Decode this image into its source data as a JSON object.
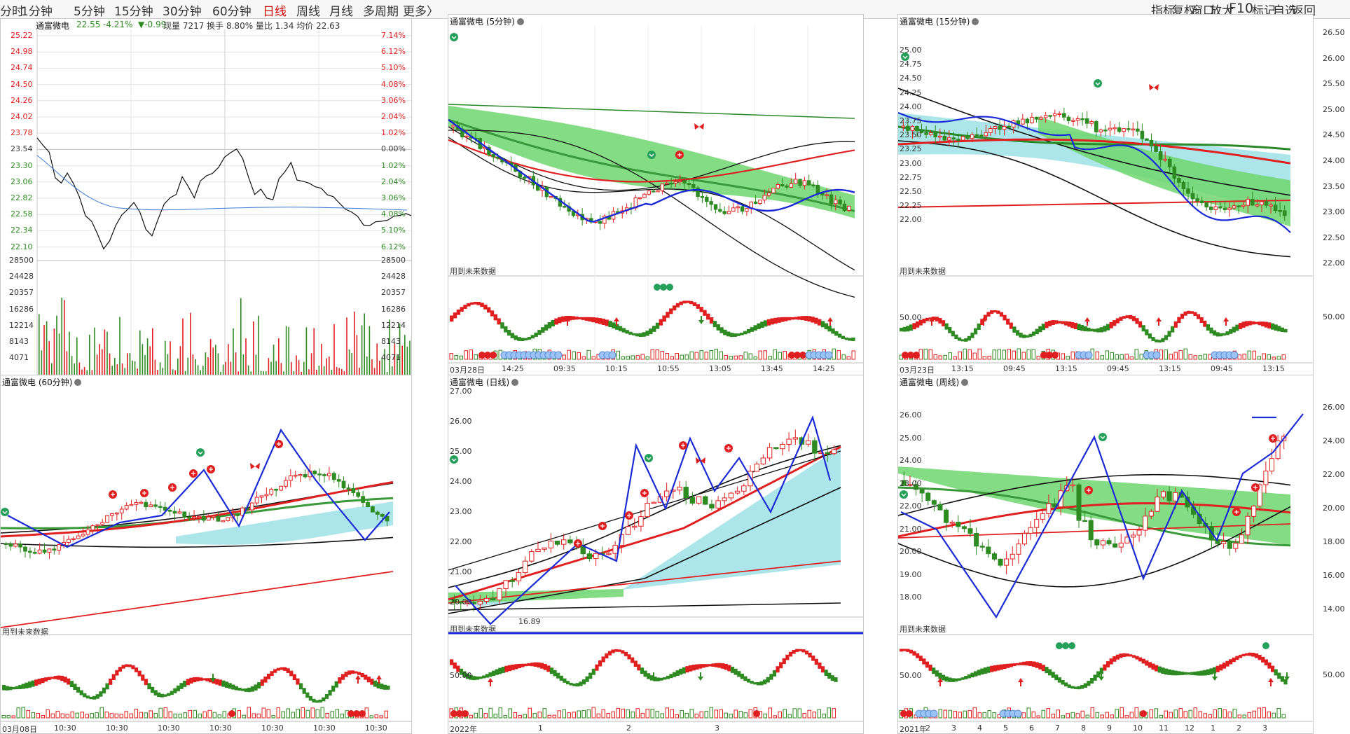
{
  "toolbar": {
    "periods": [
      "分时",
      "1分钟",
      "5分钟",
      "15分钟",
      "30分钟",
      "60分钟",
      "日线",
      "周线",
      "月线",
      "多周期",
      "更多〉"
    ],
    "active": "日线",
    "right_tools": [
      "指标",
      "复权",
      "窗口",
      "放大",
      "F10",
      "标记",
      "自选",
      "返回"
    ]
  },
  "colors": {
    "up": "#e02020",
    "down": "#2e8b22",
    "ma_blue": "#1a2bd6",
    "band_green": "#6fd66f",
    "band_cyan": "#9fe2e6"
  },
  "panels": {
    "intraday": {
      "title": "通富微电",
      "info": {
        "price": "22.55",
        "change": "-4.21%",
        "delta": "▼-0.99",
        "rest": "现量 7217 换手 8.80% 量比 1.34 均价 22.63"
      },
      "left_prices": [
        "25.22",
        "24.98",
        "24.74",
        "24.50",
        "24.26",
        "24.02",
        "23.78",
        "23.54",
        "23.30",
        "23.06",
        "22.82",
        "22.58",
        "22.34",
        "22.10"
      ],
      "right_pcts": [
        "7.14%",
        "6.12%",
        "5.10%",
        "4.08%",
        "3.06%",
        "2.04%",
        "1.02%",
        "0.00%",
        "1.02%",
        "2.04%",
        "3.06%",
        "4.08%",
        "5.10%",
        "6.12%"
      ],
      "vol_labels": [
        "28500",
        "24428",
        "20357",
        "16286",
        "12214",
        "8143",
        "4071"
      ]
    },
    "m5": {
      "title": "通富微电 (5分钟)",
      "note": "用到未来数据",
      "xaxis": [
        "03月28日",
        "14:25",
        "09:35",
        "10:15",
        "10:55",
        "13:05",
        "13:45",
        "14:25"
      ]
    },
    "m15": {
      "title": "通富微电 (15分钟)",
      "note": "用到未来数据",
      "left_axis": [
        "25.00",
        "24.75",
        "24.50",
        "24.25",
        "24.00",
        "23.75",
        "23.50",
        "23.25",
        "23.00",
        "22.75",
        "22.50",
        "22.25",
        "22.00"
      ],
      "right_axis": [
        "26.50",
        "26.00",
        "25.50",
        "25.00",
        "24.50",
        "24.00",
        "23.50",
        "23.00",
        "22.50",
        "22.00"
      ],
      "osc_left": "50.00",
      "osc_right": "50.00",
      "xaxis": [
        "03月23日",
        "13:15",
        "09:45",
        "13:15",
        "09:45",
        "13:15",
        "09:45",
        "13:15"
      ]
    },
    "m60": {
      "title": "通富微电 (60分钟)",
      "note": "用到未来数据",
      "xaxis": [
        "03月08日",
        "10:30",
        "10:30",
        "10:30",
        "10:30",
        "10:30",
        "10:30",
        "10:30"
      ]
    },
    "daily": {
      "title": "通富微电 (日线)",
      "note": "用到未来数据",
      "low_label": "16.89",
      "left_axis": [
        "27.00",
        "26.00",
        "25.00",
        "24.00",
        "23.00",
        "22.00",
        "21.00",
        "20.00"
      ],
      "osc_left": "50.00",
      "xaxis": [
        "2022年",
        "1",
        "2",
        "3"
      ]
    },
    "weekly": {
      "title": "通富微电 (周线)",
      "note": "用到未来数据",
      "left_axis": [
        "26.00",
        "25.00",
        "24.00",
        "23.00",
        "22.00",
        "21.00",
        "20.00",
        "19.00",
        "18.00"
      ],
      "right_axis": [
        "26.00",
        "24.00",
        "22.00",
        "20.00",
        "18.00",
        "16.00",
        "14.00"
      ],
      "osc_left": "50.00",
      "osc_right": "50.00",
      "xaxis": [
        "2021年",
        "2",
        "3",
        "4",
        "5",
        "6",
        "7",
        "8",
        "9",
        "10",
        "11",
        "12",
        "1",
        "2",
        "3"
      ]
    }
  }
}
